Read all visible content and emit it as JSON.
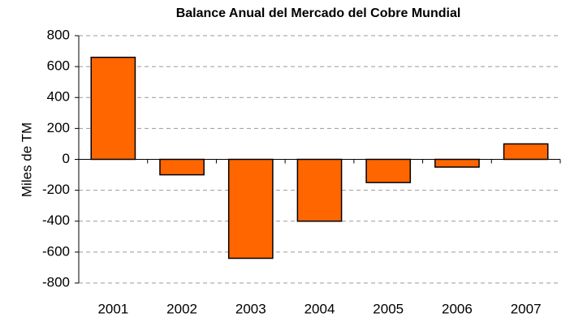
{
  "chart_data": {
    "type": "bar",
    "title": "Balance Anual del Mercado del Cobre Mundial",
    "y_label": "Miles de TM",
    "categories": [
      "2001",
      "2002",
      "2003",
      "2004",
      "2005",
      "2006",
      "2007"
    ],
    "values": [
      660,
      -100,
      -640,
      -400,
      -150,
      -50,
      100
    ],
    "color": "#ff6600",
    "ylim": [
      -800,
      800
    ],
    "yticks": [
      -800,
      -600,
      -400,
      -200,
      0,
      200,
      400,
      600,
      800
    ],
    "grid": true
  }
}
